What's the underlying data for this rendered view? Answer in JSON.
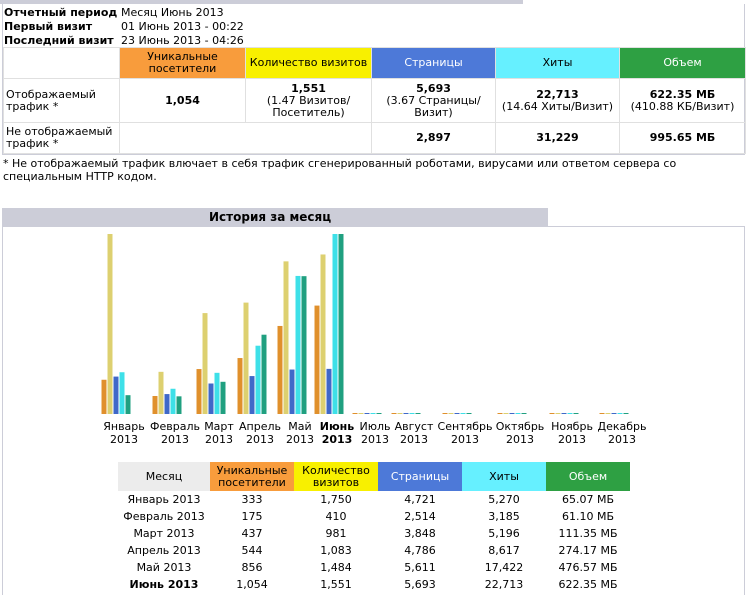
{
  "summary": {
    "period_label": "Отчетный период",
    "period_value": "Месяц Июнь 2013",
    "first_visit_label": "Первый визит",
    "first_visit_value": "01 Июнь 2013 - 00:22",
    "last_visit_label": "Последний визит",
    "last_visit_value": "23 Июнь 2013 - 04:26",
    "headers": {
      "unique": "Уникальные посетители",
      "visits": "Количество визитов",
      "pages": "Страницы",
      "hits": "Хиты",
      "volume": "Объем"
    },
    "shown": {
      "label": "Отображаемый трафик *",
      "unique": "1,054",
      "visits": "1,551",
      "visits_sub": "(1.47 Визитов/Посетитель)",
      "pages": "5,693",
      "pages_sub": "(3.67 Страницы/Визит)",
      "hits": "22,713",
      "hits_sub": "(14.64 Хиты/Визит)",
      "volume": "622.35 МБ",
      "volume_sub": "(410.88 КБ/Визит)"
    },
    "hidden": {
      "label": "Не отображаемый трафик *",
      "pages": "2,897",
      "hits": "31,229",
      "volume": "995.65 МБ"
    },
    "footnote": "* Не отображаемый трафик влючает в себя трафик сгенерированный роботами, вирусами или ответом сервера со специальным HTTP кодом."
  },
  "history": {
    "title": "История за месяц",
    "table_headers": {
      "month": "Месяц",
      "unique": "Уникальные посетители",
      "visits": "Количество визитов",
      "pages": "Страницы",
      "hits": "Хиты",
      "volume": "Объем"
    },
    "rows": [
      {
        "month": "Январь 2013",
        "unique": "333",
        "visits": "1,750",
        "pages": "4,721",
        "hits": "5,270",
        "volume": "65.07 МБ"
      },
      {
        "month": "Февраль 2013",
        "unique": "175",
        "visits": "410",
        "pages": "2,514",
        "hits": "3,185",
        "volume": "61.10 МБ"
      },
      {
        "month": "Март 2013",
        "unique": "437",
        "visits": "981",
        "pages": "3,848",
        "hits": "5,196",
        "volume": "111.35 МБ"
      },
      {
        "month": "Апрель 2013",
        "unique": "544",
        "visits": "1,083",
        "pages": "4,786",
        "hits": "8,617",
        "volume": "274.17 МБ"
      },
      {
        "month": "Май 2013",
        "unique": "856",
        "visits": "1,484",
        "pages": "5,611",
        "hits": "17,422",
        "volume": "476.57 МБ"
      },
      {
        "month": "Июнь 2013",
        "unique": "1,054",
        "visits": "1,551",
        "pages": "5,693",
        "hits": "22,713",
        "volume": "622.35 МБ"
      }
    ]
  },
  "chart_data": {
    "type": "bar",
    "categories": [
      "Январь",
      "Февраль",
      "Март",
      "Апрель",
      "Май",
      "Июнь",
      "Июль",
      "Август",
      "Сентябрь",
      "Октябрь",
      "Ноябрь",
      "Декабрь"
    ],
    "year": "2013",
    "current_index": 5,
    "series": [
      {
        "name": "Уникальные посетители",
        "color": "#e0902c",
        "values": [
          333,
          175,
          437,
          544,
          856,
          1054,
          0,
          0,
          0,
          0,
          0,
          0
        ]
      },
      {
        "name": "Количество визитов",
        "color": "#ddd070",
        "values": [
          1750,
          410,
          981,
          1083,
          1484,
          1551,
          0,
          0,
          0,
          0,
          0,
          0
        ]
      },
      {
        "name": "Страницы",
        "color": "#3f68c8",
        "values": [
          4721,
          2514,
          3848,
          4786,
          5611,
          5693,
          0,
          0,
          0,
          0,
          0,
          0
        ]
      },
      {
        "name": "Хиты",
        "color": "#3ee0e8",
        "values": [
          5270,
          3185,
          5196,
          8617,
          17422,
          22713,
          0,
          0,
          0,
          0,
          0,
          0
        ]
      },
      {
        "name": "Объем (МБ)",
        "color": "#20a080",
        "values": [
          65.07,
          61.1,
          111.35,
          274.17,
          476.57,
          622.35,
          0,
          0,
          0,
          0,
          0,
          0
        ]
      }
    ],
    "scale_groups": [
      [
        0,
        1
      ],
      [
        2,
        3
      ],
      [
        4
      ]
    ]
  }
}
